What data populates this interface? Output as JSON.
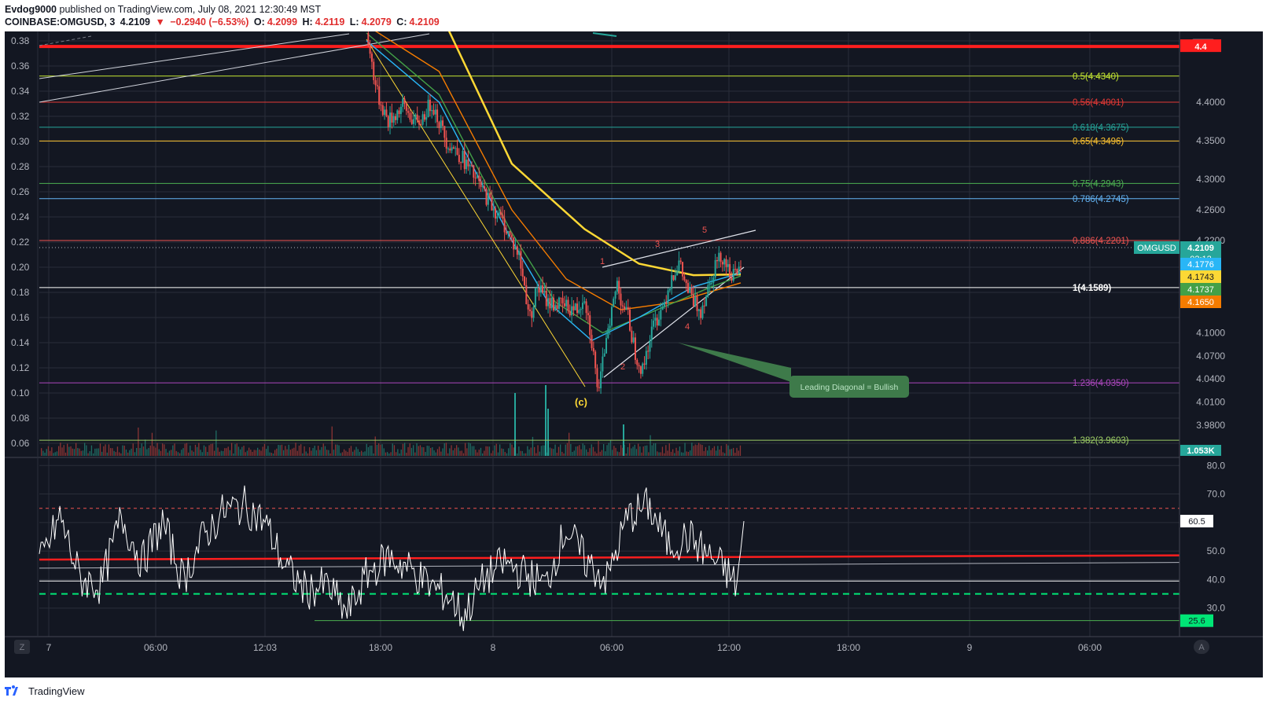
{
  "header": {
    "author": "Evdog9000",
    "published_text": "published on TradingView.com, July 08, 2021 12:30:49 MST",
    "symbol": "COINBASE:OMGUSD, 3",
    "price": "4.2109",
    "change": "−0.2940 (−6.53%)",
    "o_label": "O:",
    "o_value": "4.2099",
    "h_label": "H:",
    "h_value": "4.2119",
    "l_label": "L:",
    "l_value": "4.2079",
    "c_label": "C:",
    "c_value": "4.2109"
  },
  "footer": {
    "brand": "TradingView"
  },
  "colors": {
    "background": "#131722",
    "grid": "#2a2e39",
    "up": "#26a69a",
    "down": "#ef5350",
    "ma_yellow": "#fdd835",
    "ma_orange": "#f57c00",
    "ma_green": "#43a047",
    "ma_cyan": "#29b6f6",
    "resistance": "#ff1e1e"
  },
  "chart_data": {
    "type": "candlestick",
    "price_panel": {
      "currency": "USD",
      "left_axis_ticks": [
        "0.38",
        "0.36",
        "0.34",
        "0.32",
        "0.30",
        "0.28",
        "0.26",
        "0.24",
        "0.22",
        "0.20",
        "0.18",
        "0.16",
        "0.14",
        "0.12",
        "0.10",
        "0.08",
        "0.06"
      ],
      "right_axis_ticks": [
        "4.4000",
        "4.3500",
        "4.3000",
        "4.2600",
        "4.2200",
        "4.1000",
        "4.0700",
        "4.0400",
        "4.0100",
        "3.9800"
      ],
      "price_range": [
        3.94,
        4.49
      ],
      "last_price": 4.2109,
      "resistance_line": 4.4725,
      "fib_levels": [
        {
          "label": "0.5(4.4340)",
          "value": 4.434,
          "color": "#c6e832"
        },
        {
          "label": "0.56(4.4001)",
          "value": 4.4001,
          "color": "#e53935"
        },
        {
          "label": "0.618(4.3675)",
          "value": 4.3675,
          "color": "#26a69a"
        },
        {
          "label": "0.65(4.3496)",
          "value": 4.3496,
          "color": "#fbc02d"
        },
        {
          "label": "0.75(4.2943)",
          "value": 4.2943,
          "color": "#4caf50"
        },
        {
          "label": "0.786(4.2745)",
          "value": 4.2745,
          "color": "#64b5f6"
        },
        {
          "label": "0.886(4.2201)",
          "value": 4.2201,
          "color": "#ef5350"
        },
        {
          "label": "1(4.1589)",
          "value": 4.1589,
          "color": "#ffffff"
        },
        {
          "label": "1.236(4.0350)",
          "value": 4.035,
          "color": "#ab47bc"
        },
        {
          "label": "1.382(3.9603)",
          "value": 3.9603,
          "color": "#9ccc65"
        }
      ],
      "price_badges": [
        {
          "label": "OMGUSD",
          "value": "4.2109",
          "sub": "02:12",
          "color": "#26a69a"
        },
        {
          "value": "4.1776",
          "color": "#29b6f6"
        },
        {
          "value": "4.1743",
          "color": "#fdd835"
        },
        {
          "value": "4.1737",
          "color": "#43a047"
        },
        {
          "value": "4.1650",
          "color": "#f57c00"
        },
        {
          "value": "1.053K",
          "color": "#26a69a"
        }
      ],
      "wave_labels": [
        "1",
        "2",
        "3",
        "4",
        "5",
        "(c)"
      ],
      "annotation": "Leading Diagonal = Bullish",
      "price_path": [
        [
          0,
          4.49
        ],
        [
          3,
          4.41
        ],
        [
          6,
          4.375
        ],
        [
          10,
          4.395
        ],
        [
          14,
          4.37
        ],
        [
          18,
          4.4
        ],
        [
          22,
          4.35
        ],
        [
          26,
          4.33
        ],
        [
          30,
          4.3
        ],
        [
          34,
          4.27
        ],
        [
          38,
          4.24
        ],
        [
          42,
          4.2
        ],
        [
          45,
          4.12
        ],
        [
          47,
          4.16
        ],
        [
          50,
          4.14
        ],
        [
          54,
          4.135
        ],
        [
          58,
          4.13
        ],
        [
          60,
          4.15
        ],
        [
          62,
          4.09
        ],
        [
          63,
          4.05
        ],
        [
          64,
          4.02
        ],
        [
          65,
          4.06
        ],
        [
          66,
          4.1
        ],
        [
          68,
          4.14
        ],
        [
          69,
          4.165
        ],
        [
          70,
          4.145
        ],
        [
          72,
          4.12
        ],
        [
          74,
          4.075
        ],
        [
          76,
          4.05
        ],
        [
          77,
          4.075
        ],
        [
          79,
          4.11
        ],
        [
          82,
          4.14
        ],
        [
          84,
          4.175
        ],
        [
          86,
          4.19
        ],
        [
          88,
          4.16
        ],
        [
          90,
          4.14
        ],
        [
          92,
          4.13
        ],
        [
          94,
          4.16
        ],
        [
          96,
          4.19
        ],
        [
          98,
          4.2
        ],
        [
          100,
          4.18
        ],
        [
          102,
          4.17
        ],
        [
          103,
          4.19
        ]
      ],
      "ma_series": [
        {
          "color": "#fdd835",
          "values": [
            [
              0,
              4.56
            ],
            [
              20,
              4.52
            ],
            [
              40,
              4.32
            ],
            [
              60,
              4.235
            ],
            [
              75,
              4.19
            ],
            [
              90,
              4.175
            ],
            [
              103,
              4.176
            ]
          ]
        },
        {
          "color": "#f57c00",
          "values": [
            [
              0,
              4.5
            ],
            [
              20,
              4.44
            ],
            [
              40,
              4.26
            ],
            [
              55,
              4.17
            ],
            [
              70,
              4.13
            ],
            [
              85,
              4.14
            ],
            [
              103,
              4.165
            ]
          ]
        },
        {
          "color": "#43a047",
          "values": [
            [
              0,
              4.49
            ],
            [
              20,
              4.41
            ],
            [
              40,
              4.23
            ],
            [
              52,
              4.14
            ],
            [
              65,
              4.1
            ],
            [
              80,
              4.13
            ],
            [
              95,
              4.16
            ],
            [
              103,
              4.174
            ]
          ]
        },
        {
          "color": "#29b6f6",
          "values": [
            [
              0,
              4.48
            ],
            [
              20,
              4.4
            ],
            [
              40,
              4.22
            ],
            [
              50,
              4.14
            ],
            [
              62,
              4.09
            ],
            [
              75,
              4.12
            ],
            [
              90,
              4.16
            ],
            [
              103,
              4.178
            ]
          ]
        }
      ]
    },
    "indicator_panel": {
      "axis_ticks": [
        "80.0",
        "70.0",
        "60.5",
        "50.0",
        "40.0",
        "30.0",
        "25.6"
      ],
      "range": [
        20,
        82
      ],
      "last_value": 60.5,
      "low_badge": 25.6,
      "upper_band": 65,
      "lower_band": 35,
      "series": [
        [
          0,
          45
        ],
        [
          3,
          62
        ],
        [
          6,
          40
        ],
        [
          9,
          38
        ],
        [
          12,
          62
        ],
        [
          15,
          46
        ],
        [
          18,
          60
        ],
        [
          21,
          40
        ],
        [
          24,
          55
        ],
        [
          27,
          64
        ],
        [
          30,
          66
        ],
        [
          33,
          60
        ],
        [
          36,
          44
        ],
        [
          39,
          36
        ],
        [
          42,
          38
        ],
        [
          45,
          28
        ],
        [
          48,
          42
        ],
        [
          51,
          48
        ],
        [
          54,
          44
        ],
        [
          57,
          38
        ],
        [
          60,
          34
        ],
        [
          62,
          27
        ],
        [
          65,
          40
        ],
        [
          68,
          46
        ],
        [
          71,
          42
        ],
        [
          74,
          38
        ],
        [
          77,
          58
        ],
        [
          80,
          46
        ],
        [
          83,
          40
        ],
        [
          86,
          62
        ],
        [
          89,
          66
        ],
        [
          92,
          52
        ],
        [
          95,
          55
        ],
        [
          98,
          48
        ],
        [
          100,
          44
        ],
        [
          102,
          38
        ],
        [
          103,
          60.5
        ]
      ]
    },
    "x_axis": {
      "ticks": [
        "7",
        "06:00",
        "12:03",
        "18:00",
        "8",
        "06:00",
        "12:00",
        "18:00",
        "9",
        "06:00"
      ]
    }
  }
}
